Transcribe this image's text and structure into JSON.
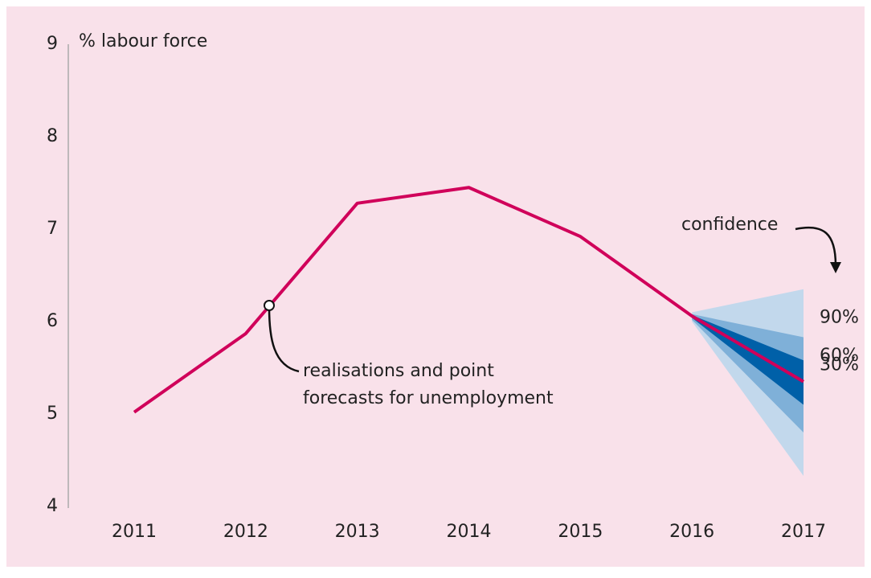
{
  "chart_data": {
    "type": "line",
    "y_axis_label": "% labour force",
    "categories": [
      "2011",
      "2012",
      "2013",
      "2014",
      "2015",
      "2016",
      "2017"
    ],
    "series": [
      {
        "name": "realisations and point forecasts for unemployment",
        "color": "#d0005a",
        "values": [
          5.02,
          5.87,
          7.28,
          7.45,
          6.92,
          6.06,
          5.35
        ]
      }
    ],
    "bands": [
      {
        "name": "90%",
        "color": "#c2d8ec",
        "lower": [
          null,
          null,
          null,
          null,
          null,
          6.0,
          4.33
        ],
        "upper": [
          null,
          null,
          null,
          null,
          null,
          6.1,
          6.35
        ]
      },
      {
        "name": "60%",
        "color": "#7fb0d8",
        "lower": [
          null,
          null,
          null,
          null,
          null,
          6.02,
          4.8
        ],
        "upper": [
          null,
          null,
          null,
          null,
          null,
          6.08,
          5.83
        ]
      },
      {
        "name": "30%",
        "color": "#0060a8",
        "lower": [
          null,
          null,
          null,
          null,
          null,
          6.04,
          5.1
        ],
        "upper": [
          null,
          null,
          null,
          null,
          null,
          6.07,
          5.58
        ]
      }
    ],
    "annotations": {
      "confidence": "confidence",
      "line_note": [
        "realisations and point",
        "forecasts for unemployment"
      ]
    },
    "ylim": [
      4,
      9
    ],
    "yticks": [
      4,
      5,
      6,
      7,
      8,
      9
    ]
  }
}
